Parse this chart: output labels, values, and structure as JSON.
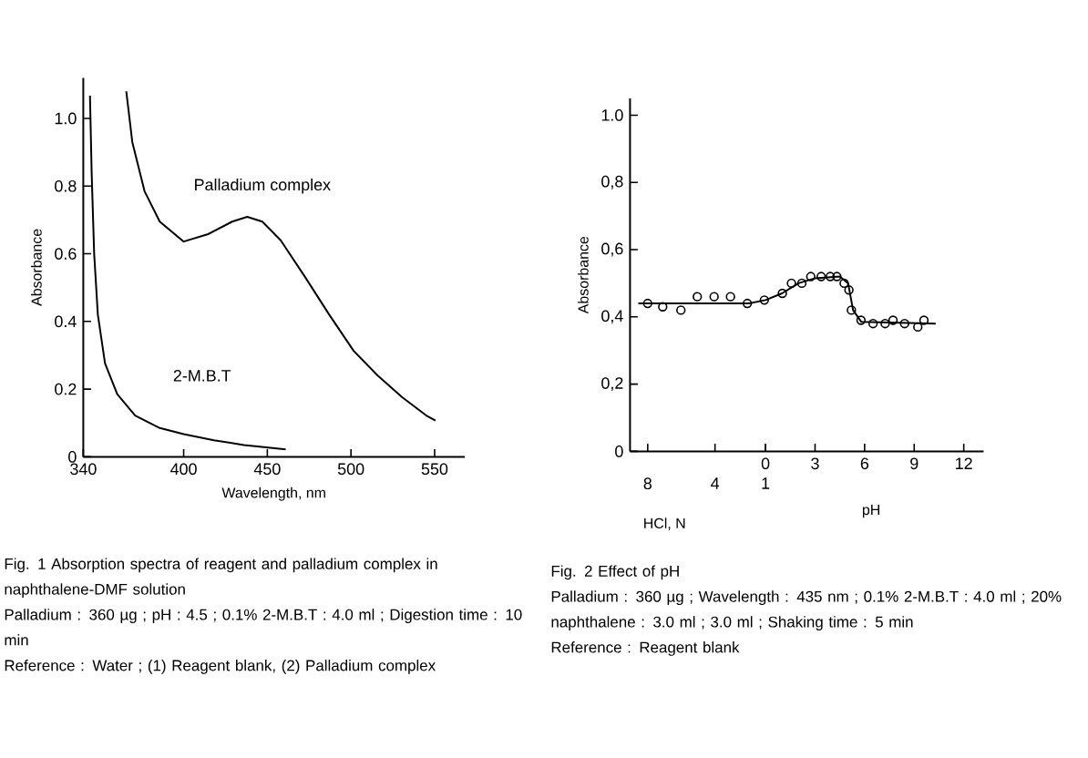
{
  "chart_data": [
    {
      "type": "line",
      "title": "Fig. 1  Absorption spectra of reagent and palladium complex in naphthalene-DMF solution",
      "xlabel": "Wavelength, nm",
      "ylabel": "Absorbance",
      "xlim": [
        340,
        568
      ],
      "ylim": [
        0,
        1.12
      ],
      "xticks": [
        340,
        400,
        450,
        500,
        550
      ],
      "yticks": [
        {
          "value": 0,
          "label": "0"
        },
        {
          "value": 0.2,
          "label": "0.2"
        },
        {
          "value": 0.4,
          "label": "0.4"
        },
        {
          "value": 0.6,
          "label": "0.6"
        },
        {
          "value": 0.8,
          "label": "0.8"
        },
        {
          "value": 1.0,
          "label": "1.0"
        }
      ],
      "series": [
        {
          "name": "Palladium complex",
          "color": "#000000",
          "x": [
            365.7,
            369.3,
            376.6,
            385.7,
            400,
            414.6,
            429,
            438,
            447,
            458,
            472.6,
            487,
            501.6,
            516,
            530.6,
            545,
            550.5
          ],
          "values": [
            1.08,
            0.93,
            0.785,
            0.695,
            0.636,
            0.658,
            0.695,
            0.709,
            0.695,
            0.64,
            0.531,
            0.42,
            0.313,
            0.24,
            0.176,
            0.122,
            0.107
          ]
        },
        {
          "name": "2-M.B.T",
          "color": "#000000",
          "x": [
            344,
            345,
            346.5,
            348.7,
            353,
            360.3,
            371,
            385.7,
            400,
            418,
            436,
            461
          ],
          "values": [
            1.067,
            0.84,
            0.6,
            0.42,
            0.276,
            0.185,
            0.122,
            0.085,
            0.067,
            0.049,
            0.035,
            0.022
          ]
        }
      ],
      "annotations": [
        "Palladium : 360 µg ; pH : 4.5 ; 0.1% 2-M.B.T : 4.0 ml ; Digestion time : 10 min",
        "Reference : Water ; (1) Reagent blank, (2) Palladium complex"
      ]
    },
    {
      "type": "scatter",
      "title": "Fig. 2  Effect of pH",
      "xlabel": "pH",
      "ylabel": "Absorbance",
      "x2label": "HCl, N",
      "x2lim": [
        9.05,
        -11.96
      ],
      "x2ticks": [
        8,
        4,
        1
      ],
      "xlim": [
        -8.2,
        13.2
      ],
      "ylim": [
        0,
        1.05
      ],
      "xticks": [
        0,
        3,
        6,
        9,
        12
      ],
      "yticks": [
        {
          "value": 0,
          "label": "0"
        },
        {
          "value": 0.2,
          "label": "0,2"
        },
        {
          "value": 0.4,
          "label": "0,4"
        },
        {
          "value": 0.6,
          "label": "0,6"
        },
        {
          "value": 0.8,
          "label": "0,8"
        },
        {
          "value": 1.0,
          "label": "1.0"
        }
      ],
      "series": [
        {
          "type": "scatter",
          "marker": "circle",
          "color": "#000000",
          "x": [
            -7.13,
            -6.22,
            -5.12,
            -4.13,
            -3.11,
            -2.12,
            -1.1,
            -0.07,
            1.02,
            1.57,
            2.2,
            2.74,
            3.37,
            3.92,
            4.32,
            4.76,
            5.05,
            5.2,
            5.78,
            6.51,
            7.24,
            7.72,
            8.42,
            9.22,
            9.59
          ],
          "values": [
            0.44,
            0.43,
            0.42,
            0.46,
            0.46,
            0.46,
            0.44,
            0.45,
            0.47,
            0.5,
            0.5,
            0.52,
            0.52,
            0.52,
            0.52,
            0.5,
            0.48,
            0.42,
            0.39,
            0.38,
            0.38,
            0.39,
            0.38,
            0.37,
            0.39
          ]
        },
        {
          "type": "line",
          "color": "#000000",
          "x": [
            -7.7,
            -1.0,
            0,
            1,
            2,
            3,
            4.5,
            5.0,
            5.3,
            5.8,
            10.3
          ],
          "values": [
            0.44,
            0.44,
            0.45,
            0.47,
            0.5,
            0.515,
            0.52,
            0.5,
            0.42,
            0.385,
            0.38
          ]
        }
      ],
      "annotations": [
        "Palladium : 360 µg ; Wavelength : 435 nm ; 0.1% 2-M.B.T : 4.0 ml ; 20% naphthalene : 3.0 ml ; 3.0 ml ; Shaking time : 5 min",
        "Reference : Reagent blank"
      ]
    }
  ]
}
